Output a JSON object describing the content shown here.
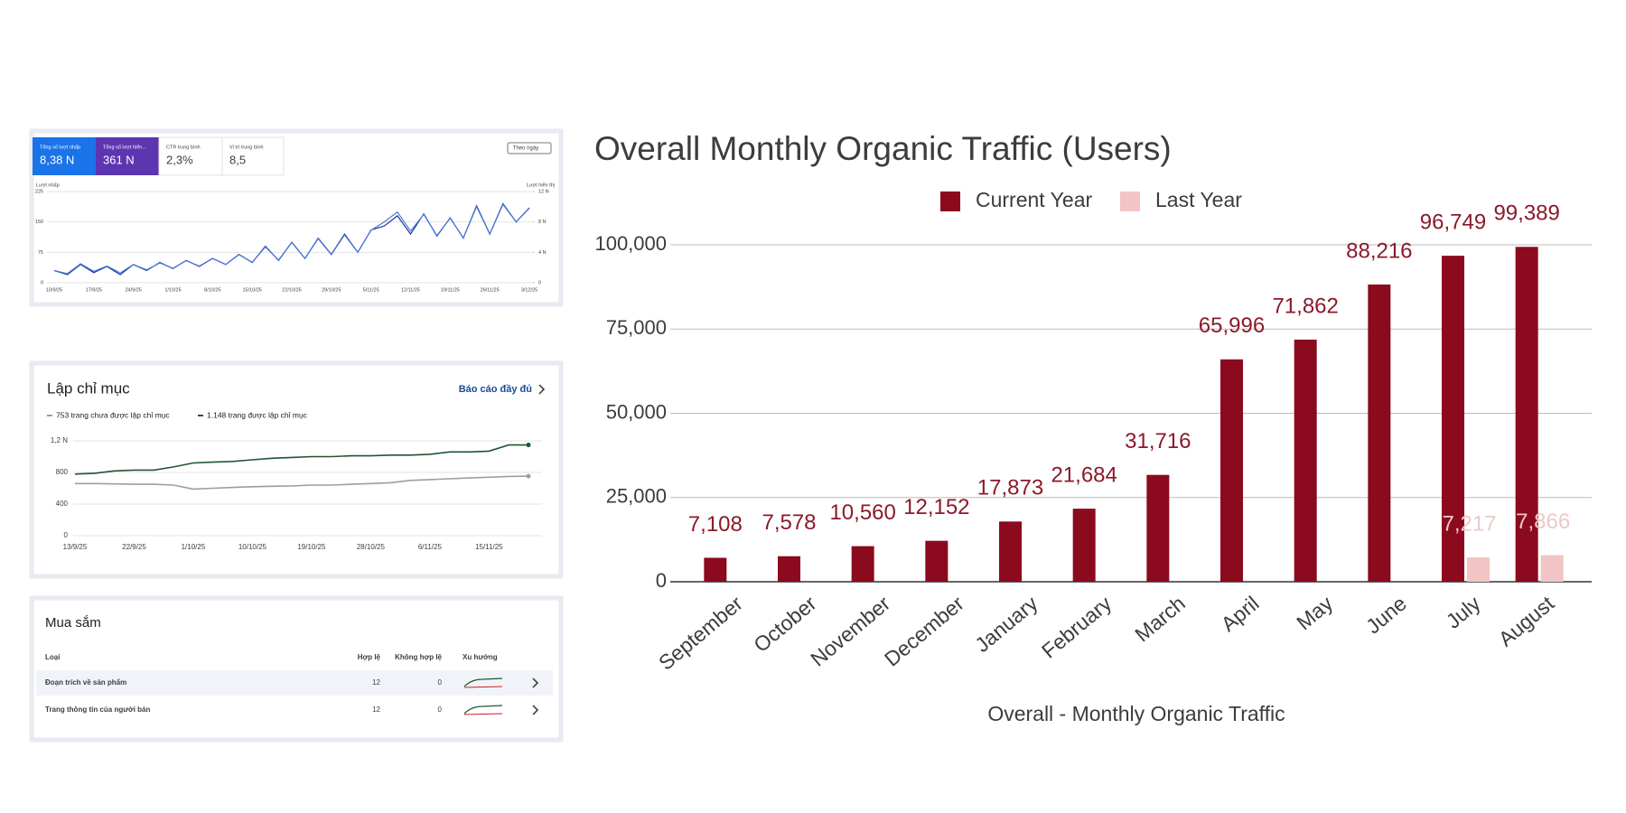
{
  "performance_panel": {
    "cards": [
      {
        "label": "Tổng số lượt nhấp",
        "value": "8,38 N"
      },
      {
        "label": "Tổng số lượt hiển...",
        "value": "361 N"
      },
      {
        "label": "CTR trung bình",
        "value": "2,3%"
      },
      {
        "label": "Vị trí trung bình",
        "value": "8,5"
      }
    ],
    "date_button": "Theo ngày"
  },
  "indexing_panel": {
    "title": "Lập chỉ mục",
    "link": "Báo cáo đầy đủ"
  },
  "shopping_panel": {
    "title": "Mua sắm",
    "headers": [
      "Loại",
      "Hợp lệ",
      "Không hợp lệ",
      "Xu hướng"
    ],
    "rows": [
      [
        "Đoạn trích về sản phẩm",
        "12",
        "0"
      ],
      [
        "Trang thông tin của người bán",
        "12",
        "0"
      ]
    ]
  },
  "chart_data": [
    {
      "type": "bar",
      "title": "Overall Monthly Organic Traffic (Users)",
      "x_label": "Overall - Monthly Organic Traffic",
      "categories": [
        "September",
        "October",
        "November",
        "December",
        "January",
        "February",
        "March",
        "April",
        "May",
        "June",
        "July",
        "August"
      ],
      "series": [
        {
          "name": "Current Year",
          "color": "#8b0a1e",
          "label_color": "#8b1a2b",
          "values": [
            7108,
            7578,
            10560,
            12152,
            17873,
            21684,
            31716,
            65996,
            71862,
            88216,
            96749,
            99389
          ],
          "value_labels": [
            "7,108",
            "7,578",
            "10,560",
            "12,152",
            "17,873",
            "21,684",
            "31,716",
            "65,996",
            "71,862",
            "88,216",
            "96,749",
            "99,389"
          ]
        },
        {
          "name": "Last Year",
          "color": "#f2c4c4",
          "label_color": "#f0c8c8",
          "values": [
            null,
            null,
            null,
            null,
            null,
            null,
            null,
            null,
            null,
            null,
            7217,
            7866
          ],
          "value_labels": [
            null,
            null,
            null,
            null,
            null,
            null,
            null,
            null,
            null,
            null,
            "7,217",
            "7,866"
          ]
        }
      ],
      "ylim": [
        0,
        100000
      ],
      "yticks": [
        0,
        {
          "value": 25000,
          "label": "25,000"
        },
        {
          "value": 50000,
          "label": "50,000"
        },
        {
          "value": 75000,
          "label": "75,000"
        },
        {
          "value": 100000,
          "label": "100,000"
        }
      ],
      "grid": true,
      "legend": "top"
    },
    {
      "type": "line",
      "y_label": "Lượt nhấp",
      "y2_label": "Lượt hiển thị",
      "categories": [
        "10/9/25",
        null,
        null,
        "17/9/25",
        null,
        null,
        "24/9/25",
        null,
        null,
        "1/10/25",
        null,
        null,
        "8/10/25",
        null,
        null,
        "15/10/25",
        null,
        null,
        "22/10/25",
        null,
        null,
        "29/10/25",
        null,
        null,
        "5/11/25",
        null,
        null,
        "12/11/25",
        null,
        null,
        "19/11/25",
        null,
        null,
        "26/11/25",
        null,
        null,
        "3/12/25"
      ],
      "series": [
        {
          "color": "#1a3a8f",
          "values": [
            30,
            20,
            45,
            25,
            40,
            20,
            45,
            30,
            50,
            35,
            55,
            40,
            60,
            45,
            70,
            50,
            90,
            55,
            100,
            60,
            110,
            70,
            120,
            75,
            130,
            140,
            165,
            120,
            170,
            115,
            160,
            110,
            190,
            120,
            195,
            150,
            185
          ]
        },
        {
          "color": "#4a78d8",
          "axis": "y2",
          "values": [
            1600,
            1200,
            2500,
            1500,
            2200,
            1300,
            2400,
            1700,
            2600,
            1900,
            2900,
            2200,
            3200,
            2400,
            3700,
            2700,
            4700,
            3000,
            5300,
            3200,
            5800,
            3700,
            6300,
            4000,
            6900,
            8000,
            9300,
            6800,
            9000,
            6200,
            8500,
            5900,
            10000,
            6400,
            10300,
            8000,
            9800
          ]
        }
      ],
      "ylim": [
        0,
        225
      ],
      "yticks": [
        0,
        75,
        150,
        225
      ],
      "y2lim": [
        0,
        12000
      ],
      "y2ticks": [
        0,
        {
          "value": 4000,
          "label": "4 N"
        },
        {
          "value": 8000,
          "label": "8 N"
        },
        {
          "value": 12000,
          "label": "12 N"
        }
      ],
      "grid": true
    },
    {
      "type": "line",
      "categories": [
        "13/9/25",
        null,
        null,
        "22/9/25",
        null,
        null,
        "1/10/25",
        null,
        null,
        "10/10/25",
        null,
        null,
        "19/10/25",
        null,
        null,
        "28/10/25",
        null,
        null,
        "6/11/25",
        null,
        null,
        "15/11/25",
        null,
        null
      ],
      "series": [
        {
          "name": "753 trang chưa được lập chỉ mục",
          "color": "#9e9e9e",
          "values": [
            660,
            660,
            655,
            650,
            650,
            640,
            590,
            600,
            610,
            620,
            625,
            630,
            640,
            640,
            650,
            660,
            670,
            700,
            710,
            720,
            730,
            740,
            750,
            753
          ]
        },
        {
          "name": "1.148 trang được lập chỉ mục",
          "color": "#1e5631",
          "values": [
            780,
            790,
            820,
            830,
            830,
            870,
            920,
            930,
            940,
            960,
            980,
            990,
            1000,
            1000,
            1010,
            1010,
            1020,
            1020,
            1030,
            1060,
            1060,
            1070,
            1148,
            1148
          ]
        }
      ],
      "ylim": [
        0,
        1200
      ],
      "yticks": [
        0,
        400,
        800,
        {
          "value": 1200,
          "label": "1,2 N"
        }
      ],
      "grid": true,
      "legend": "top-left"
    }
  ]
}
